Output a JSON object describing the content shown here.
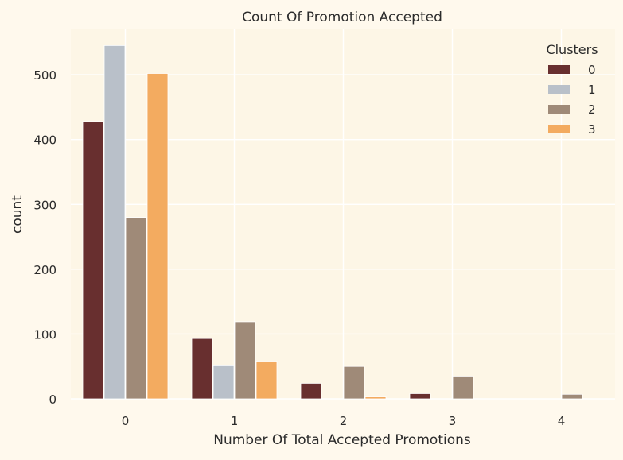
{
  "chart_data": {
    "type": "bar",
    "title": "Count Of Promotion Accepted",
    "xlabel": "Number Of Total Accepted Promotions",
    "ylabel": "count",
    "categories": [
      "0",
      "1",
      "2",
      "3",
      "4"
    ],
    "yticks": [
      0,
      100,
      200,
      300,
      400,
      500
    ],
    "ylim": [
      0,
      570
    ],
    "grid": true,
    "legend": {
      "title": "Clusters",
      "placement": "top-right"
    },
    "series": [
      {
        "name": "0",
        "color": "#682F2F",
        "values": [
          428,
          93,
          24,
          8,
          0
        ]
      },
      {
        "name": "1",
        "color": "#B9C0C9",
        "values": [
          545,
          51,
          0,
          0,
          0
        ]
      },
      {
        "name": "2",
        "color": "#9F8A78",
        "values": [
          280,
          119,
          50,
          35,
          7
        ]
      },
      {
        "name": "3",
        "color": "#F3AB60",
        "values": [
          502,
          57,
          3,
          0,
          0
        ]
      }
    ],
    "background": "#FFF9ED"
  }
}
